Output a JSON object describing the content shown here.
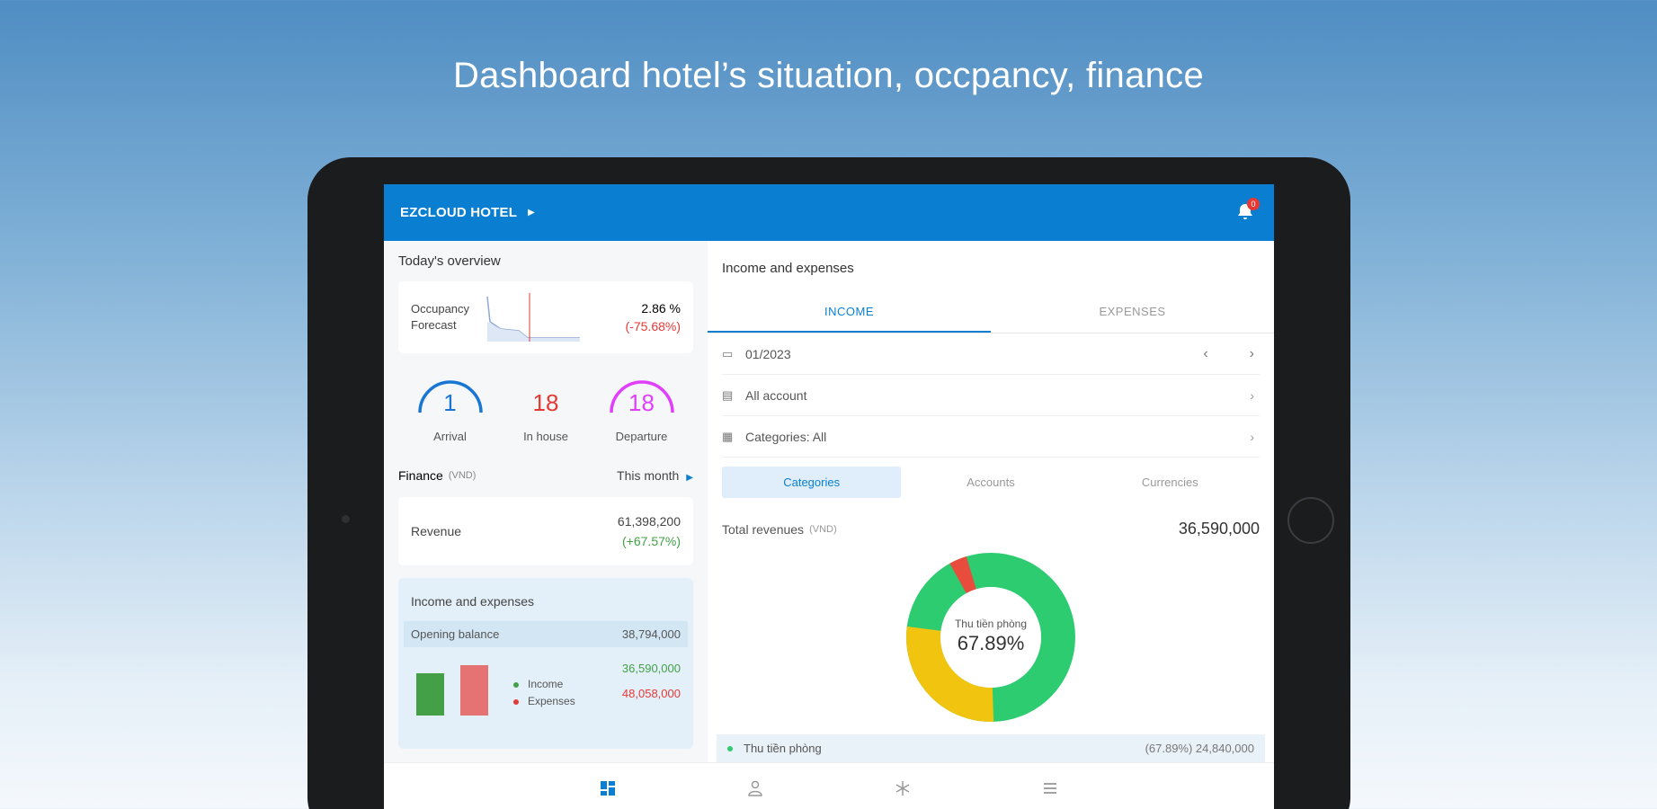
{
  "headline": "Dashboard hotel’s situation, occpancy, finance",
  "appbar": {
    "brand": "EZCLOUD HOTEL",
    "badge": "0"
  },
  "overview": {
    "title": "Today's overview",
    "occupancy": {
      "label_line1": "Occupancy",
      "label_line2": "Forecast",
      "value": "2.86 %",
      "change": "(-75.68%)"
    },
    "gauges": [
      {
        "num": "1",
        "label": "Arrival",
        "color": "#1976d2"
      },
      {
        "num": "18",
        "label": "In house",
        "color": "#e53935"
      },
      {
        "num": "18",
        "label": "Departure",
        "color": "#e040fb"
      }
    ]
  },
  "finance": {
    "title": "Finance",
    "unit": "(VND)",
    "period": "This month",
    "revenue": {
      "label": "Revenue",
      "value": "61,398,200",
      "change": "(+67.57%)"
    },
    "income_expenses": {
      "title": "Income and expenses",
      "opening_label": "Opening balance",
      "opening_value": "38,794,000",
      "legend_income": "Income",
      "legend_expenses": "Expenses",
      "income_value": "36,590,000",
      "expenses_value": "48,058,000",
      "income_color": "#43a047",
      "expenses_color": "#e57373"
    }
  },
  "right": {
    "title": "Income and expenses",
    "tab_income": "INCOME",
    "tab_expenses": "EXPENSES",
    "month": "01/2023",
    "account": "All account",
    "categories_filter": "Categories:  All",
    "seg_categories": "Categories",
    "seg_accounts": "Accounts",
    "seg_currencies": "Currencies",
    "total_label": "Total revenues",
    "total_unit": "(VND)",
    "total_value": "36,590,000",
    "donut_name": "Thu tiền phòng",
    "donut_percent": "67.89%",
    "list_item_label": "Thu tiền phòng",
    "list_item_value": "(67.89%) 24,840,000"
  },
  "colors": {
    "accent": "#0a7fd1",
    "green": "#2ecc71",
    "yellow": "#f1c40f",
    "red": "#e74c3c"
  }
}
